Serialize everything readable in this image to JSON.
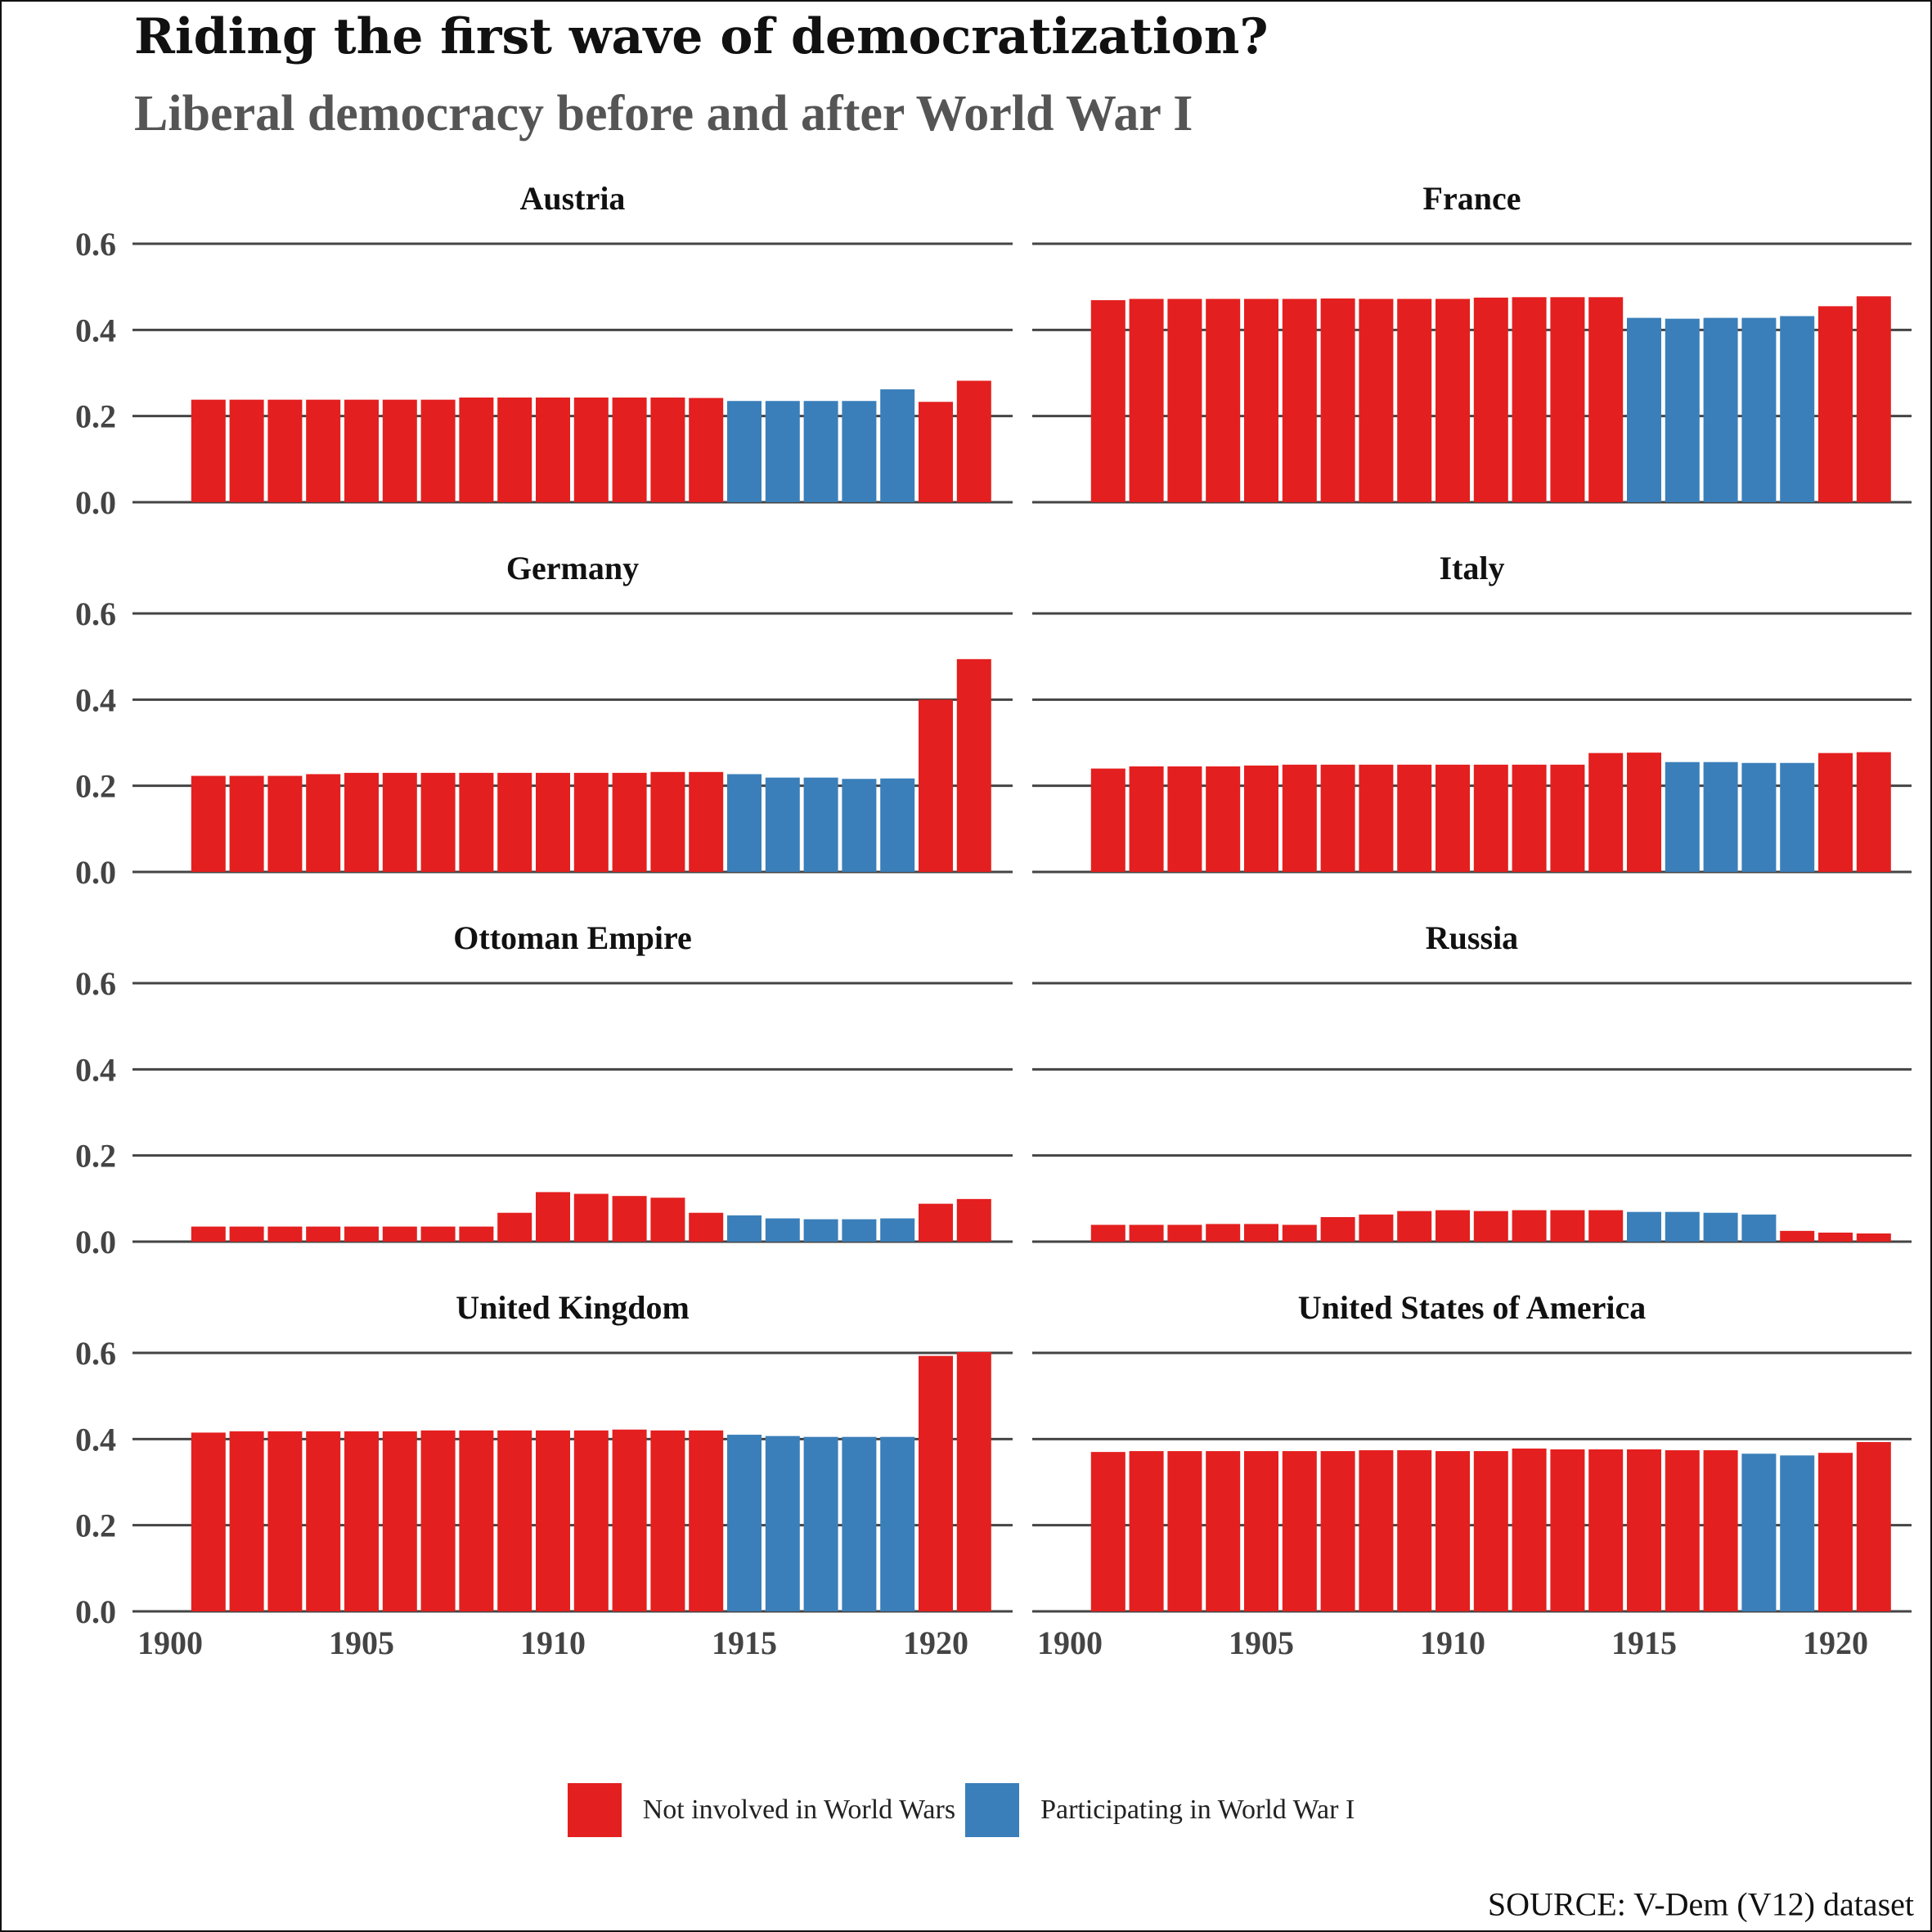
{
  "chart_data": {
    "type": "bar",
    "title": "Riding the first wave of democratization?",
    "subtitle": "Liberal democracy before and after World War I",
    "source": "SOURCE: V-Dem (V12) dataset",
    "x_ticks": [
      1900,
      1905,
      1910,
      1915,
      1920
    ],
    "y_ticks": [
      0.0,
      0.2,
      0.4,
      0.6
    ],
    "y_tick_labels": [
      "0.0",
      "0.2",
      "0.4",
      "0.6"
    ],
    "ylim": [
      0,
      0.6
    ],
    "xlim": [
      1900,
      1922
    ],
    "grid": "horizontal",
    "legend_position": "bottom",
    "legend": [
      {
        "key": "not_involved",
        "label": "Not involved in World Wars",
        "color": "#e41f1f"
      },
      {
        "key": "ww1",
        "label": "Participating in World War I",
        "color": "#3a7fba"
      }
    ],
    "years": [
      1901,
      1902,
      1903,
      1904,
      1905,
      1906,
      1907,
      1908,
      1909,
      1910,
      1911,
      1912,
      1913,
      1914,
      1915,
      1916,
      1917,
      1918,
      1919,
      1920,
      1921
    ],
    "panels": [
      {
        "name": "Austria",
        "values": [
          0.238,
          0.238,
          0.238,
          0.238,
          0.238,
          0.238,
          0.238,
          0.243,
          0.243,
          0.243,
          0.243,
          0.243,
          0.243,
          0.242,
          0.235,
          0.235,
          0.235,
          0.235,
          0.262,
          0.233,
          0.282
        ],
        "ww1": [
          1915,
          1916,
          1917,
          1918,
          1919
        ]
      },
      {
        "name": "France",
        "values": [
          0.469,
          0.472,
          0.472,
          0.472,
          0.472,
          0.472,
          0.473,
          0.472,
          0.472,
          0.472,
          0.475,
          0.476,
          0.476,
          0.476,
          0.428,
          0.426,
          0.428,
          0.428,
          0.432,
          0.455,
          0.478
        ],
        "ww1": [
          1915,
          1916,
          1917,
          1918,
          1919
        ]
      },
      {
        "name": "Germany",
        "values": [
          0.223,
          0.223,
          0.223,
          0.227,
          0.23,
          0.23,
          0.23,
          0.23,
          0.23,
          0.23,
          0.23,
          0.23,
          0.232,
          0.232,
          0.227,
          0.219,
          0.219,
          0.216,
          0.217,
          0.4,
          0.494
        ],
        "ww1": [
          1915,
          1916,
          1917,
          1918,
          1919
        ]
      },
      {
        "name": "Italy",
        "values": [
          0.24,
          0.245,
          0.245,
          0.245,
          0.247,
          0.249,
          0.249,
          0.249,
          0.249,
          0.249,
          0.249,
          0.249,
          0.249,
          0.276,
          0.277,
          0.255,
          0.255,
          0.253,
          0.253,
          0.276,
          0.278
        ],
        "ww1": [
          1916,
          1917,
          1918,
          1919
        ]
      },
      {
        "name": "Ottoman Empire",
        "values": [
          0.035,
          0.035,
          0.035,
          0.035,
          0.035,
          0.035,
          0.035,
          0.035,
          0.067,
          0.115,
          0.111,
          0.106,
          0.102,
          0.067,
          0.061,
          0.054,
          0.052,
          0.052,
          0.054,
          0.088,
          0.099
        ],
        "ww1": [
          1915,
          1916,
          1917,
          1918,
          1919
        ]
      },
      {
        "name": "Russia",
        "values": [
          0.039,
          0.039,
          0.039,
          0.041,
          0.041,
          0.039,
          0.057,
          0.063,
          0.071,
          0.073,
          0.071,
          0.073,
          0.073,
          0.073,
          0.069,
          0.069,
          0.067,
          0.063,
          0.025,
          0.021,
          0.019
        ],
        "ww1": [
          1915,
          1916,
          1917,
          1918
        ]
      },
      {
        "name": "United Kingdom",
        "values": [
          0.415,
          0.418,
          0.418,
          0.418,
          0.418,
          0.418,
          0.42,
          0.42,
          0.42,
          0.42,
          0.42,
          0.422,
          0.42,
          0.42,
          0.41,
          0.407,
          0.405,
          0.405,
          0.405,
          0.593,
          0.602
        ],
        "ww1": [
          1915,
          1916,
          1917,
          1918,
          1919
        ]
      },
      {
        "name": "United States of America",
        "values": [
          0.37,
          0.372,
          0.372,
          0.372,
          0.372,
          0.372,
          0.372,
          0.374,
          0.374,
          0.372,
          0.372,
          0.378,
          0.376,
          0.376,
          0.376,
          0.374,
          0.374,
          0.366,
          0.362,
          0.368,
          0.393
        ],
        "ww1": [
          1918,
          1919
        ]
      }
    ]
  }
}
